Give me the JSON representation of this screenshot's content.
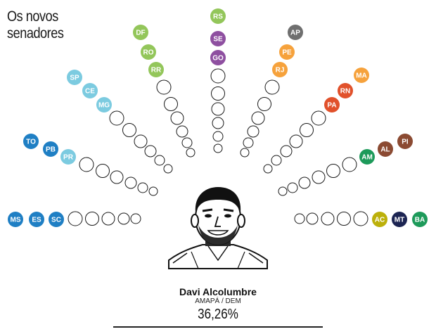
{
  "title_lines": [
    "Os novos",
    "senadores"
  ],
  "winner": {
    "name": "Davi Alcolumbre",
    "state_party": "AMAPÁ / DEM",
    "percent": "36,26%"
  },
  "colors": {
    "green": "#93c65a",
    "purple": "#8e4fa0",
    "gray": "#6f6f6f",
    "orange": "#f6a23c",
    "red": "#e1512b",
    "brown": "#8b4a32",
    "teal_green": "#1d9a5a",
    "lightblue": "#7ccbe0",
    "blue": "#1f7fc4",
    "olive": "#bcb00a",
    "navy": "#1c2452"
  },
  "rays": [
    {
      "name": "left-horizontal",
      "badges": [
        {
          "label": "MS",
          "color": "blue"
        },
        {
          "label": "ES",
          "color": "blue"
        },
        {
          "label": "SC",
          "color": "blue"
        }
      ],
      "empty": 5
    },
    {
      "name": "left-low",
      "badges": [
        {
          "label": "TO",
          "color": "blue"
        },
        {
          "label": "PB",
          "color": "blue"
        },
        {
          "label": "PR",
          "color": "lightblue"
        }
      ],
      "empty": 6
    },
    {
      "name": "left-mid",
      "badges": [
        {
          "label": "SP",
          "color": "lightblue"
        },
        {
          "label": "CE",
          "color": "lightblue"
        },
        {
          "label": "MG",
          "color": "lightblue"
        }
      ],
      "empty": 6
    },
    {
      "name": "left-high",
      "badges": [
        {
          "label": "DF",
          "color": "green"
        },
        {
          "label": "RO",
          "color": "green"
        },
        {
          "label": "RR",
          "color": "green"
        }
      ],
      "empty": 6
    },
    {
      "name": "center",
      "badges": [
        {
          "label": "RS",
          "color": "green"
        },
        {
          "label": "SE",
          "color": "purple"
        },
        {
          "label": "GO",
          "color": "purple"
        }
      ],
      "empty": 6
    },
    {
      "name": "right-high",
      "badges": [
        {
          "label": "AP",
          "color": "gray"
        },
        {
          "label": "PE",
          "color": "orange"
        },
        {
          "label": "RJ",
          "color": "orange"
        }
      ],
      "empty": 6
    },
    {
      "name": "right-mid",
      "badges": [
        {
          "label": "MA",
          "color": "orange"
        },
        {
          "label": "RN",
          "color": "red"
        },
        {
          "label": "PA",
          "color": "red"
        }
      ],
      "empty": 6
    },
    {
      "name": "right-low",
      "badges": [
        {
          "label": "PI",
          "color": "brown"
        },
        {
          "label": "AL",
          "color": "brown"
        },
        {
          "label": "AM",
          "color": "teal_green"
        }
      ],
      "empty": 6
    },
    {
      "name": "right-horizontal",
      "badges": [
        {
          "label": "BA",
          "color": "teal_green"
        },
        {
          "label": "MT",
          "color": "navy"
        },
        {
          "label": "AC",
          "color": "olive"
        }
      ],
      "empty": 5
    }
  ]
}
